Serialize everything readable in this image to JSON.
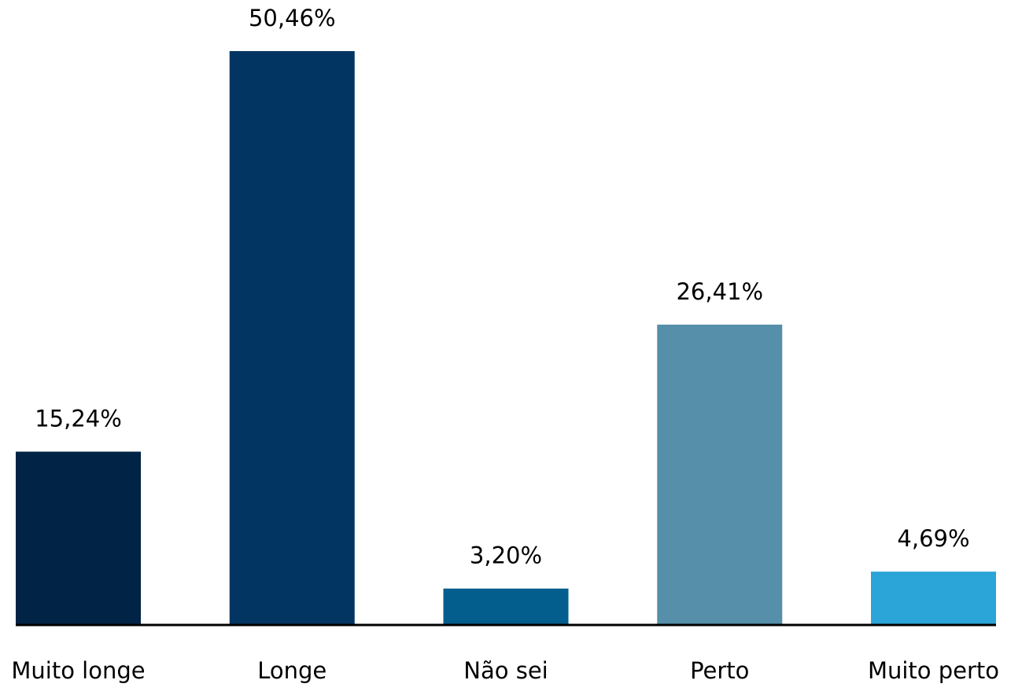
{
  "chart_data": {
    "type": "bar",
    "categories": [
      "Muito longe",
      "Longe",
      "Não sei",
      "Perto",
      "Muito perto"
    ],
    "values": [
      15.24,
      50.46,
      3.2,
      26.41,
      4.69
    ],
    "value_labels": [
      "15,24%",
      "50,46%",
      "3,20%",
      "26,41%",
      "4,69%"
    ],
    "colors": [
      "#012345",
      "#023562",
      "#035d8d",
      "#558fa9",
      "#2ba4d7"
    ]
  }
}
